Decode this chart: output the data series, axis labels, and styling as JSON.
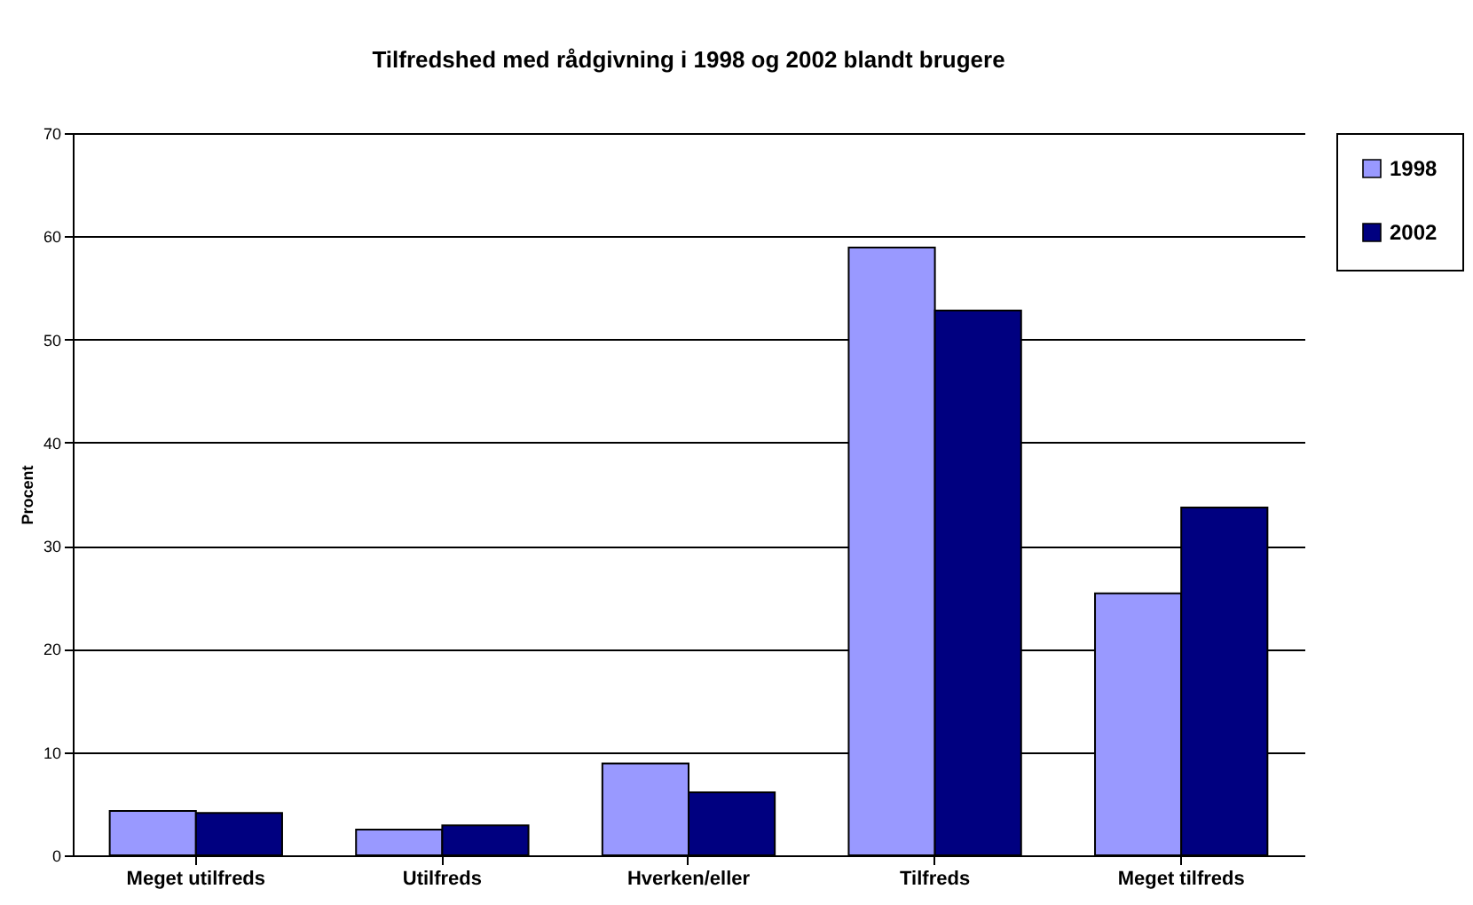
{
  "chart_data": {
    "type": "bar",
    "title": "Tilfredshed med rådgivning i 1998 og 2002 blandt brugere",
    "ylabel": "Procent",
    "categories": [
      "Meget utilfreds",
      "Utilfreds",
      "Hverken/eller",
      "Tilfreds",
      "Meget tilfreds"
    ],
    "series": [
      {
        "name": "1998",
        "color": "#9999ff",
        "values": [
          4.3,
          2.5,
          8.9,
          58.9,
          25.4
        ]
      },
      {
        "name": "2002",
        "color": "#000080",
        "values": [
          4.1,
          2.9,
          6.1,
          52.8,
          33.7
        ]
      }
    ],
    "ylim": [
      0,
      70
    ],
    "yticks": [
      0,
      10,
      20,
      30,
      40,
      50,
      60,
      70
    ],
    "grid": "y",
    "legend": "right"
  }
}
